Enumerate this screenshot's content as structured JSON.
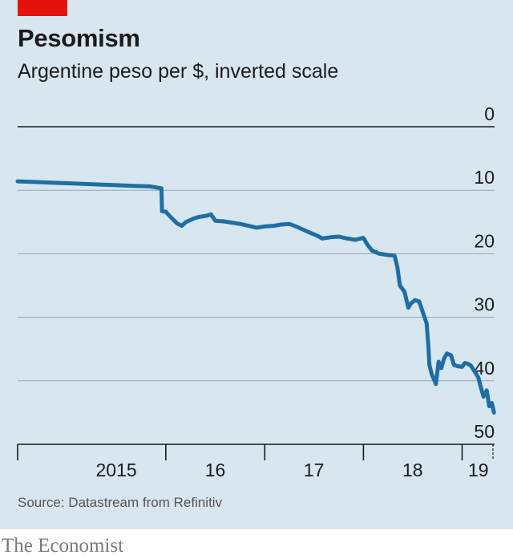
{
  "header": {
    "title": "Pesomism",
    "subtitle": "Argentine peso per $, inverted scale"
  },
  "footer": {
    "source": "Source: Datastream from Refinitiv",
    "brand": "The Economist"
  },
  "colors": {
    "background": "#d7e6ef",
    "series": "#1f6ea3",
    "accent_tag": "#e3120b"
  },
  "chart_data": {
    "type": "line",
    "title": "Pesomism",
    "subtitle": "Argentine peso per $, inverted scale",
    "y_inverted": true,
    "ylim": [
      0,
      50
    ],
    "yticks": [
      0,
      10,
      20,
      30,
      40,
      50
    ],
    "xlim": [
      "2014-07-01",
      "2019-04-30"
    ],
    "x_period_labels": [
      {
        "label": "2015",
        "center": "2015-07-01"
      },
      {
        "label": "16",
        "center": "2016-07-01"
      },
      {
        "label": "17",
        "center": "2017-07-01"
      },
      {
        "label": "18",
        "center": "2018-07-01"
      },
      {
        "label": "19",
        "center": "2019-03-01"
      }
    ],
    "x_boundaries": [
      "2015-12-31",
      "2016-12-31",
      "2017-12-31",
      "2018-12-31"
    ],
    "grid": true,
    "series": [
      {
        "x": [
          "2014-07-01",
          "2014-09-01",
          "2014-11-01",
          "2015-01-01",
          "2015-03-01",
          "2015-05-01",
          "2015-07-01",
          "2015-09-01",
          "2015-11-01",
          "2015-12-15",
          "2015-12-17",
          "2015-12-31",
          "2016-01-20",
          "2016-02-10",
          "2016-02-28",
          "2016-03-15",
          "2016-04-10",
          "2016-05-01",
          "2016-06-01",
          "2016-06-15",
          "2016-07-01",
          "2016-08-01",
          "2016-09-01",
          "2016-10-01",
          "2016-11-01",
          "2016-12-01",
          "2017-01-01",
          "2017-02-01",
          "2017-03-01",
          "2017-04-01",
          "2017-05-01",
          "2017-06-01",
          "2017-07-15",
          "2017-08-01",
          "2017-09-01",
          "2017-10-01",
          "2017-11-01",
          "2017-12-01",
          "2017-12-31",
          "2018-01-15",
          "2018-02-01",
          "2018-03-01",
          "2018-04-01",
          "2018-04-25",
          "2018-05-05",
          "2018-05-15",
          "2018-06-01",
          "2018-06-15",
          "2018-06-25",
          "2018-07-10",
          "2018-07-25",
          "2018-08-10",
          "2018-08-22",
          "2018-08-28",
          "2018-09-01",
          "2018-09-10",
          "2018-09-25",
          "2018-10-05",
          "2018-10-15",
          "2018-10-25",
          "2018-11-05",
          "2018-11-20",
          "2018-12-01",
          "2018-12-15",
          "2018-12-31",
          "2019-01-10",
          "2019-01-20",
          "2019-02-01",
          "2019-02-15",
          "2019-03-01",
          "2019-03-10",
          "2019-03-20",
          "2019-04-01",
          "2019-04-10",
          "2019-04-20",
          "2019-04-28"
        ],
        "values": [
          8.6,
          8.7,
          8.8,
          8.9,
          9.0,
          9.1,
          9.2,
          9.3,
          9.4,
          9.7,
          13.3,
          13.4,
          14.3,
          15.2,
          15.6,
          15.0,
          14.5,
          14.2,
          14.0,
          13.8,
          14.8,
          14.9,
          15.1,
          15.3,
          15.6,
          15.9,
          15.7,
          15.6,
          15.4,
          15.3,
          15.8,
          16.4,
          17.2,
          17.6,
          17.4,
          17.3,
          17.6,
          17.8,
          17.5,
          18.6,
          19.5,
          20.0,
          20.2,
          20.3,
          22.0,
          25.0,
          26.0,
          28.5,
          27.8,
          27.3,
          27.5,
          29.5,
          31.0,
          34.5,
          37.5,
          39.0,
          40.5,
          37.0,
          38.0,
          36.5,
          35.7,
          36.0,
          37.5,
          37.7,
          37.8,
          37.2,
          37.3,
          37.6,
          38.5,
          39.5,
          41.0,
          42.5,
          41.5,
          44.0,
          43.5,
          45.0
        ]
      }
    ]
  }
}
